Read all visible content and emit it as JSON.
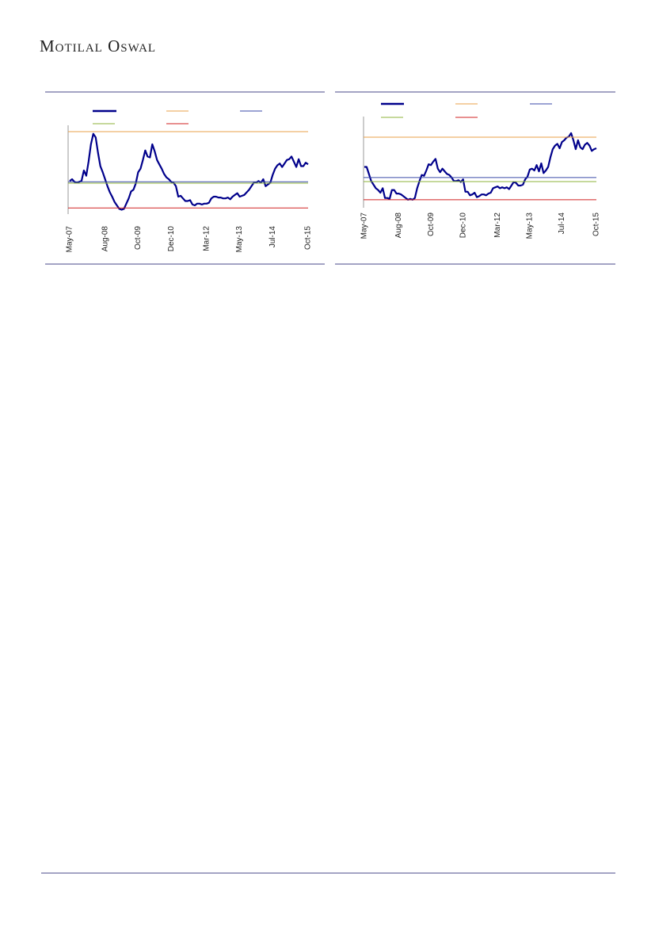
{
  "header": {
    "brand": "Motilal Oswal"
  },
  "chart_data": [
    {
      "type": "line",
      "categories": [
        "May-07",
        null,
        null,
        null,
        null,
        null,
        null,
        null,
        null,
        null,
        null,
        null,
        null,
        null,
        null,
        "Aug-08",
        null,
        null,
        null,
        null,
        null,
        null,
        null,
        null,
        null,
        null,
        null,
        null,
        null,
        "Oct-09",
        null,
        null,
        null,
        null,
        null,
        null,
        null,
        null,
        null,
        null,
        null,
        null,
        null,
        "Dec-10",
        null,
        null,
        null,
        null,
        null,
        null,
        null,
        null,
        null,
        null,
        null,
        null,
        null,
        null,
        "Mar-12",
        null,
        null,
        null,
        null,
        null,
        null,
        null,
        null,
        null,
        null,
        null,
        null,
        null,
        "May-13",
        null,
        null,
        null,
        null,
        null,
        null,
        null,
        null,
        null,
        null,
        null,
        null,
        null,
        "Jul-14",
        null,
        null,
        null,
        null,
        null,
        null,
        null,
        null,
        null,
        null,
        null,
        null,
        null,
        null,
        "Oct-15"
      ],
      "ylim": [
        0,
        100
      ],
      "series": [
        {
          "color": "#00008b",
          "values": [
            38,
            40,
            37,
            36,
            37,
            38,
            50,
            44,
            60,
            80,
            92,
            88,
            70,
            55,
            48,
            40,
            32,
            25,
            20,
            14,
            10,
            6,
            5,
            6,
            12,
            18,
            26,
            28,
            35,
            48,
            52,
            62,
            73,
            66,
            65,
            80,
            72,
            62,
            57,
            52,
            46,
            42,
            40,
            37,
            36,
            32,
            20,
            21,
            18,
            15,
            15,
            16,
            11,
            10,
            12,
            12,
            11,
            12,
            12,
            13,
            18,
            20,
            20,
            19,
            19,
            18,
            18,
            19,
            17,
            20,
            22,
            24,
            20,
            21,
            22,
            25,
            28,
            32,
            36,
            36,
            38,
            36,
            40,
            32,
            34,
            36,
            45,
            52,
            56,
            58,
            54,
            58,
            62,
            63,
            66,
            60,
            54,
            63,
            55,
            55,
            59,
            57
          ]
        },
        {
          "color": "#e8a04a",
          "value": 94.5
        },
        {
          "color": "#3a4aa8",
          "value": 37
        },
        {
          "color": "#8db33a",
          "value": 35.5
        },
        {
          "color": "#d02020",
          "value": 7
        }
      ]
    },
    {
      "type": "line",
      "categories": [
        "May-07",
        null,
        null,
        null,
        null,
        null,
        null,
        null,
        null,
        null,
        null,
        null,
        null,
        null,
        null,
        "Aug-08",
        null,
        null,
        null,
        null,
        null,
        null,
        null,
        null,
        null,
        null,
        null,
        null,
        null,
        "Oct-09",
        null,
        null,
        null,
        null,
        null,
        null,
        null,
        null,
        null,
        null,
        null,
        null,
        null,
        "Dec-10",
        null,
        null,
        null,
        null,
        null,
        null,
        null,
        null,
        null,
        null,
        null,
        null,
        null,
        null,
        "Mar-12",
        null,
        null,
        null,
        null,
        null,
        null,
        null,
        null,
        null,
        null,
        null,
        null,
        null,
        "May-13",
        null,
        null,
        null,
        null,
        null,
        null,
        null,
        null,
        null,
        null,
        null,
        null,
        null,
        "Jul-14",
        null,
        null,
        null,
        null,
        null,
        null,
        null,
        null,
        null,
        null,
        null,
        null,
        null,
        null,
        "Oct-15"
      ],
      "ylim": [
        0,
        100
      ],
      "series": [
        {
          "color": "#00008b",
          "values": [
            46,
            46,
            38,
            30,
            26,
            22,
            20,
            17,
            22,
            11,
            11,
            10,
            20,
            20,
            16,
            16,
            15,
            13,
            11,
            9,
            10,
            9,
            11,
            22,
            30,
            37,
            36,
            42,
            49,
            48,
            52,
            55,
            44,
            40,
            44,
            41,
            38,
            37,
            34,
            30,
            30,
            31,
            29,
            32,
            18,
            18,
            14,
            15,
            17,
            12,
            13,
            15,
            15,
            14,
            16,
            17,
            22,
            23,
            24,
            22,
            23,
            22,
            23,
            21,
            25,
            29,
            28,
            25,
            25,
            26,
            32,
            35,
            43,
            44,
            42,
            48,
            41,
            50,
            39,
            42,
            46,
            57,
            66,
            70,
            72,
            67,
            74,
            76,
            79,
            80,
            84,
            76,
            66,
            76,
            68,
            66,
            71,
            73,
            70,
            64,
            66,
            67
          ]
        },
        {
          "color": "#e8a04a",
          "value": 79.5
        },
        {
          "color": "#3a4aa8",
          "value": 34
        },
        {
          "color": "#8db33a",
          "value": 29.5
        },
        {
          "color": "#d02020",
          "value": 9
        }
      ]
    }
  ]
}
